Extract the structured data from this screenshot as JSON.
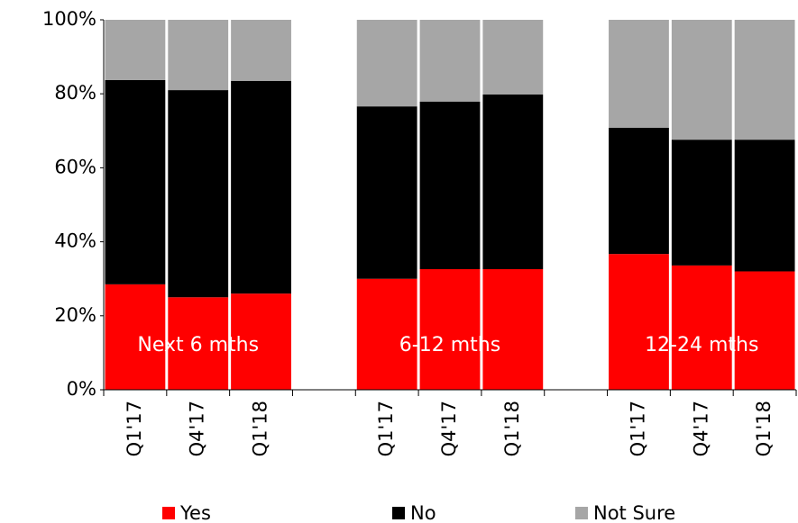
{
  "chart_data": {
    "type": "stacked-bar",
    "categories": [
      "Q1'17",
      "Q4'17",
      "Q1'18",
      null,
      "Q1'17",
      "Q4'17",
      "Q1'18",
      null,
      "Q1'17",
      "Q4'17",
      "Q1'18"
    ],
    "series": [
      {
        "name": "Yes",
        "color": "#ff0000",
        "values": [
          28.5,
          25,
          26,
          null,
          30,
          32.6,
          32.6,
          null,
          36.7,
          33.6,
          32
        ]
      },
      {
        "name": "No",
        "color": "#000000",
        "values": [
          55.2,
          56,
          57.5,
          null,
          46.6,
          45.3,
          47.2,
          null,
          34.1,
          34,
          35.6
        ]
      },
      {
        "name": "Not Sure",
        "color": "#a6a6a6",
        "values": [
          16.3,
          19,
          16.5,
          null,
          23.4,
          22.1,
          20.2,
          null,
          29.2,
          32.4,
          32.4
        ]
      }
    ],
    "group_labels": [
      "Next 6 mths",
      "6-12 mths",
      "12-24 mths"
    ],
    "ylim": [
      0,
      100
    ],
    "yticks": [
      {
        "value": 0,
        "label": "0%"
      },
      {
        "value": 20,
        "label": "20%"
      },
      {
        "value": 40,
        "label": "40%"
      },
      {
        "value": 60,
        "label": "60%"
      },
      {
        "value": 80,
        "label": "80%"
      },
      {
        "value": 100,
        "label": "100%"
      }
    ],
    "legend": "bottom"
  }
}
